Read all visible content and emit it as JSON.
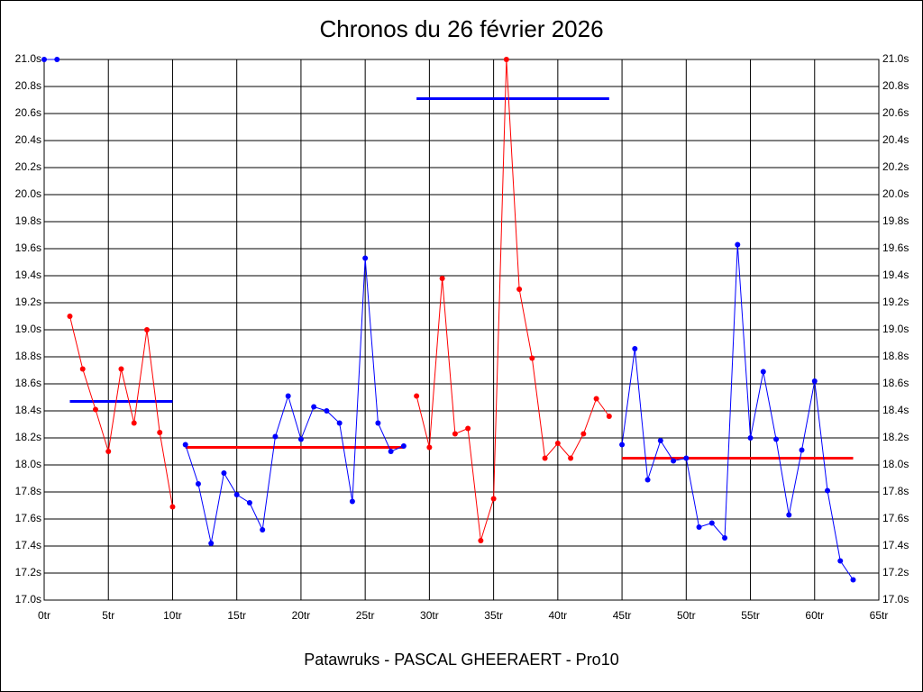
{
  "chart_data": {
    "type": "line",
    "title": "Chronos du 26 février 2026",
    "x_label": "Patawruks - PASCAL GHEERAERT - Pro10",
    "xlim": [
      0,
      65
    ],
    "xticks": [
      {
        "value": 0,
        "label": "0tr"
      },
      {
        "value": 5,
        "label": "5tr"
      },
      {
        "value": 10,
        "label": "10tr"
      },
      {
        "value": 15,
        "label": "15tr"
      },
      {
        "value": 20,
        "label": "20tr"
      },
      {
        "value": 25,
        "label": "25tr"
      },
      {
        "value": 30,
        "label": "30tr"
      },
      {
        "value": 35,
        "label": "35tr"
      },
      {
        "value": 40,
        "label": "40tr"
      },
      {
        "value": 45,
        "label": "45tr"
      },
      {
        "value": 50,
        "label": "50tr"
      },
      {
        "value": 55,
        "label": "55tr"
      },
      {
        "value": 60,
        "label": "60tr"
      },
      {
        "value": 65,
        "label": "65tr"
      }
    ],
    "ylim": [
      17.0,
      21.0
    ],
    "yticks": [
      {
        "value": 17.0,
        "label": "17.0s"
      },
      {
        "value": 17.2,
        "label": "17.2s"
      },
      {
        "value": 17.4,
        "label": "17.4s"
      },
      {
        "value": 17.6,
        "label": "17.6s"
      },
      {
        "value": 17.8,
        "label": "17.8s"
      },
      {
        "value": 18.0,
        "label": "18.0s"
      },
      {
        "value": 18.2,
        "label": "18.2s"
      },
      {
        "value": 18.4,
        "label": "18.4s"
      },
      {
        "value": 18.6,
        "label": "18.6s"
      },
      {
        "value": 18.8,
        "label": "18.8s"
      },
      {
        "value": 19.0,
        "label": "19.0s"
      },
      {
        "value": 19.2,
        "label": "19.2s"
      },
      {
        "value": 19.4,
        "label": "19.4s"
      },
      {
        "value": 19.6,
        "label": "19.6s"
      },
      {
        "value": 19.8,
        "label": "19.8s"
      },
      {
        "value": 20.0,
        "label": "20.0s"
      },
      {
        "value": 20.2,
        "label": "20.2s"
      },
      {
        "value": 20.4,
        "label": "20.4s"
      },
      {
        "value": 20.6,
        "label": "20.6s"
      },
      {
        "value": 20.8,
        "label": "20.8s"
      },
      {
        "value": 21.0,
        "label": "21.0s"
      }
    ],
    "grid": true,
    "series": [
      {
        "color": "#0000ff",
        "x": [
          0,
          1
        ],
        "values": [
          21.0,
          21.0
        ]
      },
      {
        "color": "#ff0000",
        "x": [
          2,
          3,
          4,
          5,
          6,
          7,
          8,
          9,
          10
        ],
        "values": [
          19.1,
          18.71,
          18.41,
          18.1,
          18.71,
          18.31,
          19.0,
          18.24,
          17.69
        ]
      },
      {
        "color": "#0000ff",
        "x": [
          11,
          12,
          13,
          14,
          15,
          16,
          17,
          18,
          19,
          20,
          21,
          22,
          23,
          24,
          25,
          26,
          27,
          28
        ],
        "values": [
          18.15,
          17.86,
          17.42,
          17.94,
          17.78,
          17.72,
          17.52,
          18.21,
          18.51,
          18.19,
          18.43,
          18.4,
          18.31,
          17.73,
          19.53,
          18.31,
          18.1,
          18.14
        ]
      },
      {
        "color": "#ff0000",
        "x": [
          29,
          30,
          31,
          32,
          33,
          34,
          35,
          36,
          37,
          38,
          39,
          40,
          41,
          42,
          43,
          44
        ],
        "values": [
          18.51,
          18.13,
          19.38,
          18.23,
          18.27,
          17.44,
          17.75,
          21.0,
          19.3,
          18.79,
          18.05,
          18.16,
          18.05,
          18.23,
          18.49,
          18.36
        ]
      },
      {
        "color": "#0000ff",
        "x": [
          45,
          46,
          47,
          48,
          49,
          50,
          51,
          52,
          53,
          54,
          55,
          56,
          57,
          58,
          59,
          60,
          61,
          62,
          63
        ],
        "values": [
          18.15,
          18.86,
          17.89,
          18.18,
          18.03,
          18.05,
          17.54,
          17.57,
          17.46,
          19.63,
          18.2,
          18.69,
          18.19,
          17.63,
          18.11,
          18.62,
          17.81,
          17.29,
          17.15
        ]
      }
    ],
    "means": [
      {
        "color": "#0000ff",
        "x": [
          2,
          10
        ],
        "value": 18.47
      },
      {
        "color": "#ff0000",
        "x": [
          11,
          28
        ],
        "value": 18.13
      },
      {
        "color": "#0000ff",
        "x": [
          29,
          44
        ],
        "value": 20.71
      },
      {
        "color": "#ff0000",
        "x": [
          45,
          63
        ],
        "value": 18.05
      }
    ]
  }
}
